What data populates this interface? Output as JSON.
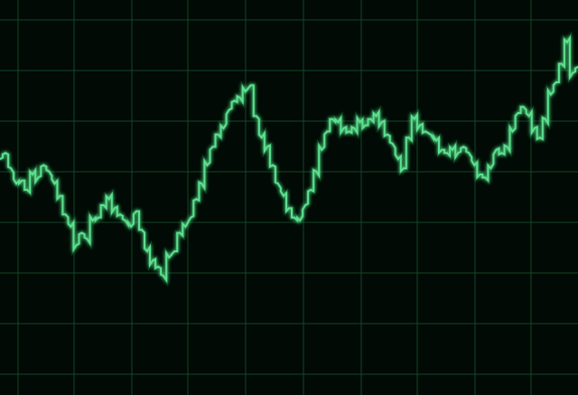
{
  "colors": {
    "background": "#010a04",
    "grid": "#15512f",
    "line": "#5de08f",
    "glow": "#2bbf63"
  },
  "chart_data": {
    "type": "line",
    "grid": true,
    "legend": "none",
    "xlim": [
      0,
      106
    ],
    "ylim": [
      0,
      100
    ],
    "series": [
      {
        "values": [
          60,
          62,
          57,
          52,
          53,
          50,
          55,
          54,
          58,
          56,
          52,
          48,
          42,
          38,
          32,
          36,
          34,
          40,
          41,
          45,
          47,
          44,
          42,
          40,
          38,
          43,
          37,
          30,
          27,
          25,
          22,
          28,
          30,
          36,
          38,
          41,
          47,
          52,
          58,
          64,
          68,
          70,
          76,
          79,
          80,
          82,
          84,
          74,
          67,
          64,
          58,
          52,
          48,
          44,
          41,
          40,
          45,
          50,
          56,
          63,
          69,
          73,
          72,
          70,
          69,
          70,
          72,
          71,
          73,
          74,
          72,
          68,
          65,
          60,
          57,
          67,
          73,
          71,
          69,
          68,
          66,
          63,
          62,
          63,
          62,
          64,
          62,
          58,
          55,
          54,
          57,
          63,
          62,
          64,
          69,
          75,
          77,
          74,
          70,
          67,
          73,
          81,
          85,
          91,
          98,
          88,
          90
        ]
      }
    ]
  }
}
